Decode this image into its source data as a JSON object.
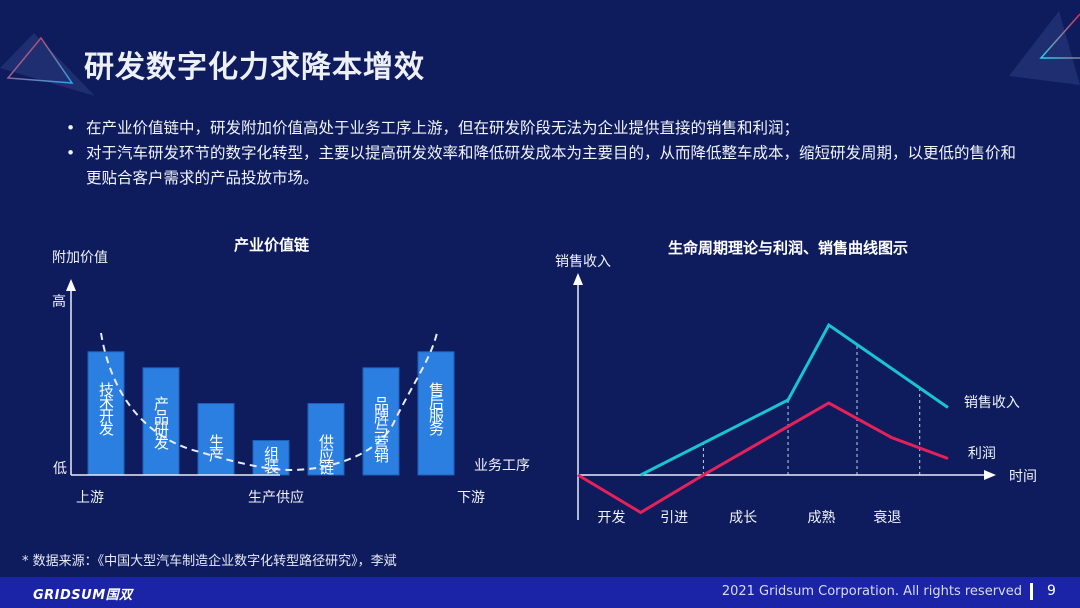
{
  "slide": {
    "title": "研发数字化力求降本增效",
    "bullets": [
      "在产业价值链中，研发附加价值高处于业务工序上游，但在研发阶段无法为企业提供直接的销售和利润；",
      "对于汽车研发环节的数字化转型，主要以提高研发效率和降低研发成本为主要目的，从而降低整车成本，缩短研发周期，以更低的售价和更贴合客户需求的产品投放市场。"
    ],
    "source": "* 数据来源：《中国大型汽车制造企业数字化转型路径研究》，李斌",
    "footer": {
      "logo": "GRIDSUM国双",
      "copyright": "2021 Gridsum Corporation. All rights reserved",
      "page_number": "9"
    }
  },
  "colors": {
    "background": "#0e1c5e",
    "footer": "#1b24a6",
    "bar": "#2a7fe0",
    "sales_line": "#19c3d3",
    "profit_line": "#e8205a"
  },
  "chart_data": [
    {
      "type": "bar",
      "title": "产业价值链",
      "ylabel": "附加价值",
      "xlabel": "业务工序",
      "y_high_label": "高",
      "y_low_label": "低",
      "x_tick_labels": [
        "上游",
        "生产供应",
        "下游"
      ],
      "categories": [
        "技术开发",
        "产品研发",
        "生产",
        "组装",
        "供应链",
        "品牌与营销",
        "售后服务"
      ],
      "values": [
        100,
        87,
        58,
        28,
        58,
        87,
        100
      ],
      "ylim": [
        0,
        115
      ],
      "trend": "dashed U-shaped smile curve"
    },
    {
      "type": "line",
      "title": "生命周期理论与利润、销售曲线图示",
      "ylabel": "销售收入",
      "xlabel": "时间",
      "x_tick_labels": [
        "开发",
        "引进",
        "成长",
        "成熟",
        "衰退"
      ],
      "x": [
        0,
        1,
        2,
        3,
        4,
        5,
        6
      ],
      "series": [
        {
          "name": "销售收入",
          "x": [
            1,
            3.35,
            4,
            5.9
          ],
          "values": [
            0,
            50,
            100,
            45
          ]
        },
        {
          "name": "利润",
          "x": [
            0,
            1,
            2,
            4,
            5,
            5.9
          ],
          "values": [
            0,
            -25,
            0,
            48,
            25,
            11
          ]
        }
      ],
      "phase_boundaries": [
        1,
        2,
        3.35,
        4.45,
        5.45
      ],
      "ylim": [
        -30,
        110
      ],
      "xlim": [
        0,
        6.6
      ]
    }
  ]
}
